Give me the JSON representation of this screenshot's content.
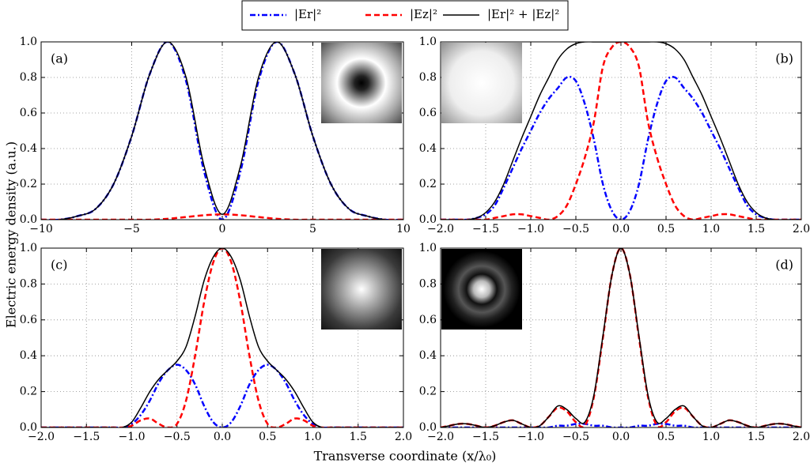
{
  "xlabel": "Transverse coordinate (x/λ₀)",
  "ylabel": "Electric energy density (a.u.)",
  "chart_data": [
    {
      "type": "line",
      "annotation": "(a)",
      "grid": true,
      "x": [
        -10,
        -9,
        -8,
        -7,
        -6,
        -5,
        -4,
        -3,
        -2,
        -1,
        0,
        1,
        2,
        3,
        4,
        5,
        6,
        7,
        8,
        9,
        10
      ],
      "xlim": [
        -10,
        10
      ],
      "xticks": [
        {
          "value": -10,
          "label": "−10"
        },
        {
          "value": -5,
          "label": "−5"
        },
        0,
        5,
        10
      ],
      "ylim": [
        0,
        1
      ],
      "yticks": [
        {
          "value": 0,
          "label": "0.0"
        },
        {
          "value": 0.2,
          "label": "0.2"
        },
        {
          "value": 0.4,
          "label": "0.4"
        },
        {
          "value": 0.6,
          "label": "0.6"
        },
        {
          "value": 0.8,
          "label": "0.8"
        },
        {
          "value": 1,
          "label": "1.0"
        }
      ],
      "series": [
        {
          "name": "|Er|²",
          "color": "#0000ff",
          "dash": "dashdot",
          "values": [
            0,
            0,
            0.02,
            0.06,
            0.2,
            0.47,
            0.82,
            1,
            0.78,
            0.27,
            0,
            0.27,
            0.78,
            1,
            0.82,
            0.47,
            0.2,
            0.06,
            0.02,
            0,
            0
          ]
        },
        {
          "name": "|Ez|²",
          "color": "#ff0000",
          "dash": "dashed",
          "values": [
            0,
            0,
            0,
            0,
            0,
            0,
            0,
            0.005,
            0.015,
            0.025,
            0.03,
            0.025,
            0.015,
            0.005,
            0,
            0,
            0,
            0,
            0,
            0,
            0
          ]
        },
        {
          "name": "|Er|² + |Ez|²",
          "color": "#000000",
          "dash": "solid",
          "values": [
            0,
            0,
            0.02,
            0.06,
            0.2,
            0.47,
            0.82,
            1,
            0.8,
            0.3,
            0.03,
            0.3,
            0.8,
            1,
            0.82,
            0.47,
            0.2,
            0.06,
            0.02,
            0,
            0
          ]
        }
      ]
    },
    {
      "type": "line",
      "annotation": "(b)",
      "grid": true,
      "x": [
        -2,
        -1.9,
        -1.8,
        -1.7,
        -1.6,
        -1.5,
        -1.4,
        -1.3,
        -1.2,
        -1.1,
        -1,
        -0.9,
        -0.8,
        -0.7,
        -0.6,
        -0.5,
        -0.4,
        -0.3,
        -0.2,
        -0.1,
        0,
        0.1,
        0.2,
        0.3,
        0.4,
        0.5,
        0.6,
        0.7,
        0.8,
        0.9,
        1,
        1.1,
        1.2,
        1.3,
        1.4,
        1.5,
        1.6,
        1.7,
        1.8,
        1.9,
        2
      ],
      "xlim": [
        -2,
        2
      ],
      "xticks": [
        {
          "value": -2,
          "label": "−2.0"
        },
        {
          "value": -1.5,
          "label": "−1.5"
        },
        {
          "value": -1,
          "label": "−1.0"
        },
        {
          "value": -0.5,
          "label": "−0.5"
        },
        {
          "value": 0,
          "label": "0.0"
        },
        {
          "value": 0.5,
          "label": "0.5"
        },
        {
          "value": 1,
          "label": "1.0"
        },
        {
          "value": 1.5,
          "label": "1.5"
        },
        {
          "value": 2,
          "label": "2.0"
        }
      ],
      "ylim": [
        0,
        1
      ],
      "yticks": [
        {
          "value": 0,
          "label": "0.0"
        },
        {
          "value": 0.2,
          "label": "0.2"
        },
        {
          "value": 0.4,
          "label": "0.4"
        },
        {
          "value": 0.6,
          "label": "0.6"
        },
        {
          "value": 0.8,
          "label": "0.8"
        },
        {
          "value": 1,
          "label": "1.0"
        }
      ],
      "series": [
        {
          "color": "#0000ff",
          "dash": "dashdot",
          "values": [
            0,
            0,
            0,
            0,
            0.01,
            0.03,
            0.08,
            0.18,
            0.29,
            0.4,
            0.5,
            0.6,
            0.68,
            0.74,
            0.8,
            0.78,
            0.65,
            0.45,
            0.2,
            0.05,
            0,
            0.05,
            0.2,
            0.45,
            0.65,
            0.78,
            0.8,
            0.74,
            0.68,
            0.6,
            0.5,
            0.4,
            0.29,
            0.18,
            0.08,
            0.03,
            0.01,
            0,
            0,
            0,
            0
          ]
        },
        {
          "color": "#ff0000",
          "dash": "dashed",
          "values": [
            0,
            0,
            0,
            0,
            0,
            0,
            0.01,
            0.02,
            0.03,
            0.03,
            0.02,
            0.01,
            0,
            0.02,
            0.08,
            0.2,
            0.35,
            0.55,
            0.86,
            0.97,
            1,
            0.97,
            0.86,
            0.55,
            0.35,
            0.2,
            0.08,
            0.02,
            0,
            0.01,
            0.02,
            0.03,
            0.03,
            0.02,
            0.01,
            0,
            0,
            0,
            0,
            0,
            0
          ]
        },
        {
          "color": "#000000",
          "dash": "solid",
          "values": [
            0,
            0,
            0,
            0,
            0.01,
            0.04,
            0.1,
            0.2,
            0.33,
            0.46,
            0.58,
            0.7,
            0.8,
            0.9,
            0.96,
            0.99,
            1,
            1,
            1,
            1,
            1,
            1,
            1,
            1,
            1,
            0.99,
            0.96,
            0.9,
            0.8,
            0.7,
            0.58,
            0.46,
            0.33,
            0.2,
            0.1,
            0.04,
            0.01,
            0,
            0,
            0,
            0
          ]
        }
      ]
    },
    {
      "type": "line",
      "annotation": "(c)",
      "grid": true,
      "x": [
        -2,
        -1.9,
        -1.8,
        -1.7,
        -1.6,
        -1.5,
        -1.4,
        -1.3,
        -1.2,
        -1.1,
        -1,
        -0.9,
        -0.8,
        -0.7,
        -0.6,
        -0.5,
        -0.4,
        -0.3,
        -0.2,
        -0.1,
        0,
        0.1,
        0.2,
        0.3,
        0.4,
        0.5,
        0.6,
        0.7,
        0.8,
        0.9,
        1,
        1.1,
        1.2,
        1.3,
        1.4,
        1.5,
        1.6,
        1.7,
        1.8,
        1.9,
        2
      ],
      "xlim": [
        -2,
        2
      ],
      "xticks": [
        {
          "value": -2,
          "label": "−2.0"
        },
        {
          "value": -1.5,
          "label": "−1.5"
        },
        {
          "value": -1,
          "label": "−1.0"
        },
        {
          "value": -0.5,
          "label": "−0.5"
        },
        {
          "value": 0,
          "label": "0.0"
        },
        {
          "value": 0.5,
          "label": "0.5"
        },
        {
          "value": 1,
          "label": "1.0"
        },
        {
          "value": 1.5,
          "label": "1.5"
        },
        {
          "value": 2,
          "label": "2.0"
        }
      ],
      "ylim": [
        0,
        1
      ],
      "yticks": [
        {
          "value": 0,
          "label": "0.0"
        },
        {
          "value": 0.2,
          "label": "0.2"
        },
        {
          "value": 0.4,
          "label": "0.4"
        },
        {
          "value": 0.6,
          "label": "0.6"
        },
        {
          "value": 0.8,
          "label": "0.8"
        },
        {
          "value": 1,
          "label": "1.0"
        }
      ],
      "series": [
        {
          "color": "#0000ff",
          "dash": "dashdot",
          "values": [
            0,
            0,
            0,
            0,
            0,
            0,
            0,
            0,
            0,
            0,
            0.02,
            0.07,
            0.15,
            0.25,
            0.32,
            0.35,
            0.32,
            0.24,
            0.12,
            0.03,
            0,
            0.03,
            0.12,
            0.24,
            0.32,
            0.35,
            0.32,
            0.25,
            0.15,
            0.07,
            0.02,
            0,
            0,
            0,
            0,
            0,
            0,
            0,
            0,
            0,
            0
          ]
        },
        {
          "color": "#ff0000",
          "dash": "dashed",
          "values": [
            0,
            0,
            0,
            0,
            0,
            0,
            0,
            0,
            0,
            0,
            0.01,
            0.04,
            0.05,
            0.02,
            0,
            0.02,
            0.15,
            0.4,
            0.7,
            0.92,
            1,
            0.92,
            0.7,
            0.4,
            0.15,
            0.02,
            0,
            0.02,
            0.05,
            0.04,
            0.01,
            0,
            0,
            0,
            0,
            0,
            0,
            0,
            0,
            0,
            0
          ]
        },
        {
          "color": "#000000",
          "dash": "solid",
          "values": [
            0,
            0,
            0,
            0,
            0,
            0,
            0,
            0,
            0,
            0,
            0.03,
            0.11,
            0.2,
            0.27,
            0.32,
            0.37,
            0.45,
            0.62,
            0.82,
            0.95,
            1,
            0.95,
            0.82,
            0.62,
            0.45,
            0.37,
            0.32,
            0.27,
            0.2,
            0.11,
            0.03,
            0,
            0,
            0,
            0,
            0,
            0,
            0,
            0,
            0,
            0
          ]
        }
      ]
    },
    {
      "type": "line",
      "annotation": "(d)",
      "grid": true,
      "x": [
        -2,
        -1.9,
        -1.8,
        -1.7,
        -1.6,
        -1.5,
        -1.4,
        -1.3,
        -1.2,
        -1.1,
        -1,
        -0.9,
        -0.8,
        -0.7,
        -0.6,
        -0.5,
        -0.4,
        -0.3,
        -0.2,
        -0.1,
        0,
        0.1,
        0.2,
        0.3,
        0.4,
        0.5,
        0.6,
        0.7,
        0.8,
        0.9,
        1,
        1.1,
        1.2,
        1.3,
        1.4,
        1.5,
        1.6,
        1.7,
        1.8,
        1.9,
        2
      ],
      "xlim": [
        -2,
        2
      ],
      "xticks": [
        {
          "value": -2,
          "label": "−2.0"
        },
        {
          "value": -1.5,
          "label": "−1.5"
        },
        {
          "value": -1,
          "label": "−1.0"
        },
        {
          "value": -0.5,
          "label": "−0.5"
        },
        {
          "value": 0,
          "label": "0.0"
        },
        {
          "value": 0.5,
          "label": "0.5"
        },
        {
          "value": 1,
          "label": "1.0"
        },
        {
          "value": 1.5,
          "label": "1.5"
        },
        {
          "value": 2,
          "label": "2.0"
        }
      ],
      "ylim": [
        0,
        1
      ],
      "yticks": [
        {
          "value": 0,
          "label": "0.0"
        },
        {
          "value": 0.2,
          "label": "0.2"
        },
        {
          "value": 0.4,
          "label": "0.4"
        },
        {
          "value": 0.6,
          "label": "0.6"
        },
        {
          "value": 0.8,
          "label": "0.8"
        },
        {
          "value": 1,
          "label": "1.0"
        }
      ],
      "series": [
        {
          "color": "#0000ff",
          "dash": "dashdot",
          "values": [
            0,
            0,
            0,
            0,
            0,
            0,
            0,
            0,
            0,
            0,
            0,
            0,
            0,
            0.01,
            0.01,
            0.02,
            0.02,
            0.01,
            0.01,
            0,
            0,
            0,
            0.01,
            0.01,
            0.02,
            0.02,
            0.01,
            0.01,
            0,
            0,
            0,
            0,
            0,
            0,
            0,
            0,
            0,
            0,
            0,
            0,
            0
          ]
        },
        {
          "color": "#ff0000",
          "dash": "dashed",
          "values": [
            0,
            0.01,
            0.02,
            0.02,
            0.01,
            0,
            0.01,
            0.03,
            0.04,
            0.02,
            0,
            0.01,
            0.06,
            0.11,
            0.09,
            0.03,
            0.01,
            0.17,
            0.5,
            0.85,
            1,
            0.85,
            0.5,
            0.17,
            0.01,
            0.03,
            0.09,
            0.11,
            0.06,
            0.01,
            0,
            0.02,
            0.04,
            0.03,
            0.01,
            0,
            0.01,
            0.02,
            0.02,
            0.01,
            0
          ]
        },
        {
          "color": "#000000",
          "dash": "solid",
          "values": [
            0,
            0.01,
            0.02,
            0.02,
            0.01,
            0,
            0.01,
            0.03,
            0.04,
            0.02,
            0,
            0.01,
            0.06,
            0.12,
            0.1,
            0.05,
            0.03,
            0.18,
            0.51,
            0.85,
            1,
            0.85,
            0.51,
            0.18,
            0.03,
            0.05,
            0.1,
            0.12,
            0.06,
            0.01,
            0,
            0.02,
            0.04,
            0.03,
            0.01,
            0,
            0.01,
            0.02,
            0.02,
            0.01,
            0
          ]
        }
      ]
    }
  ]
}
